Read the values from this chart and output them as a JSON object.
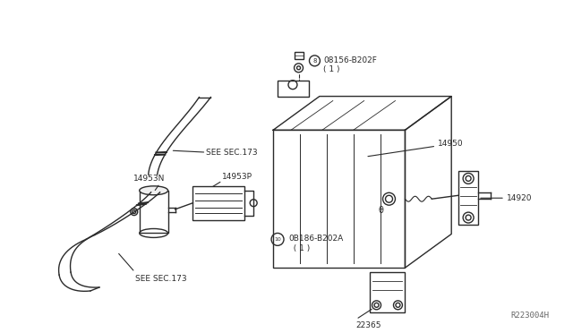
{
  "bg_color": "#ffffff",
  "line_color": "#2a2a2a",
  "figsize": [
    6.4,
    3.72
  ],
  "dpi": 100,
  "labels": {
    "see_sec_173_top": "SEE SEC.173",
    "see_sec_173_bot": "SEE SEC.173",
    "14953N": "14953N",
    "14953P": "14953P",
    "14950": "14950",
    "14920": "14920",
    "22365": "22365",
    "08156_B202F": "08156-B202F\n( 1 )",
    "08186_B202A": "0B186-B202A\n  ( 1 )"
  },
  "watermark": "R223004H"
}
